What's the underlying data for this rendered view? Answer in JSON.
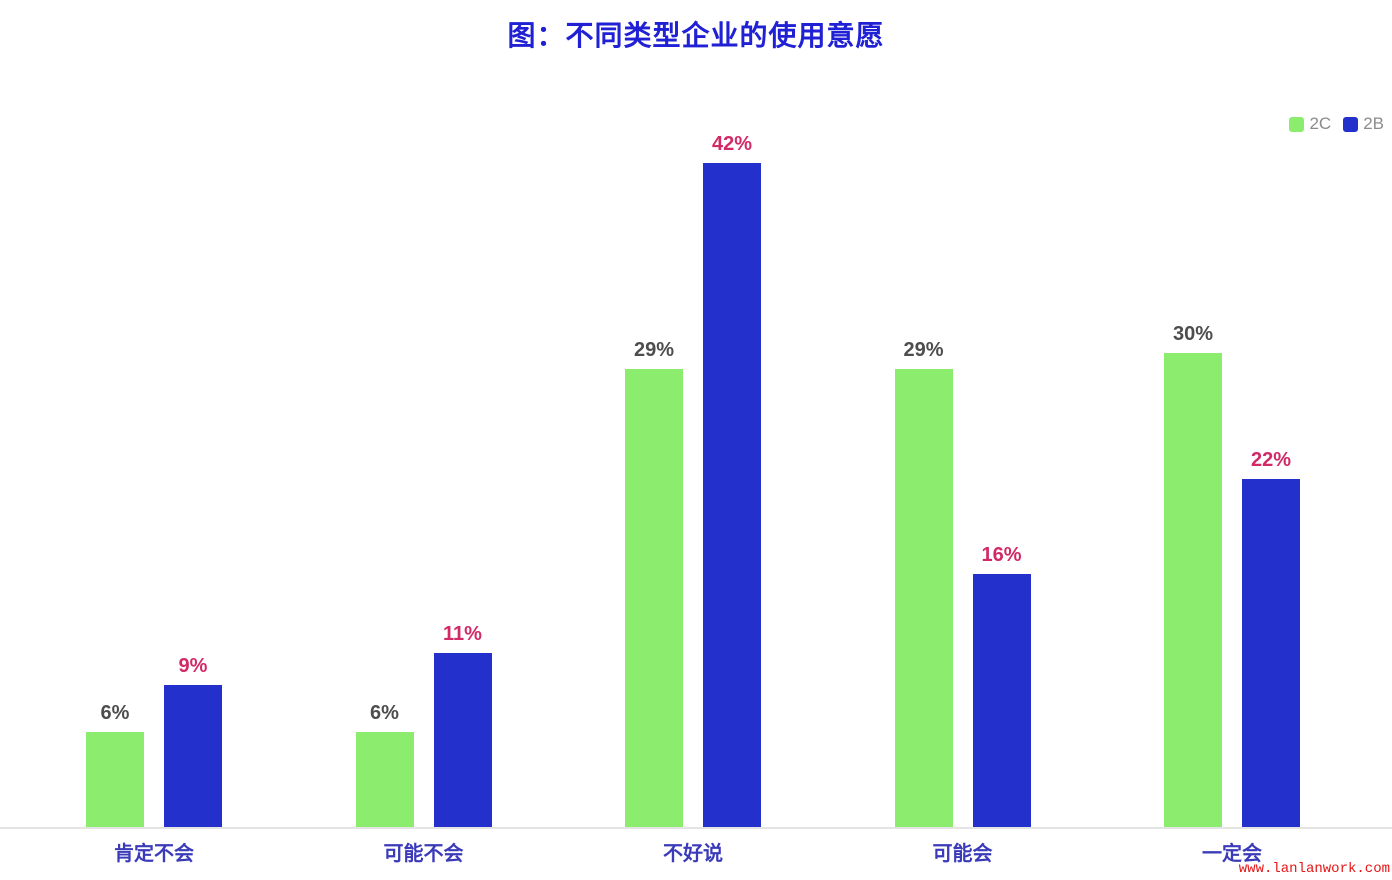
{
  "title": "图：不同类型企业的使用意愿",
  "legend": [
    {
      "label": "2C",
      "color": "#8cec6d"
    },
    {
      "label": "2B",
      "color": "#2330cb"
    }
  ],
  "watermark": "www.lanlanwork.com",
  "colors": {
    "title": "#2020d4",
    "axis_label": "#3b3bba",
    "legend_text": "#8c8c8c",
    "axis_line": "#e4e4e4",
    "watermark": "#e51616"
  },
  "chart_data": {
    "type": "bar",
    "title": "图：不同类型企业的使用意愿",
    "categories": [
      "肯定不会",
      "可能不会",
      "不好说",
      "可能会",
      "一定会"
    ],
    "series": [
      {
        "name": "2C",
        "color": "#8cec6d",
        "label_color": "#4d4d4d",
        "values": [
          6,
          6,
          29,
          29,
          30
        ]
      },
      {
        "name": "2B",
        "color": "#2330cb",
        "label_color": "#d12a66",
        "values": [
          9,
          11,
          42,
          16,
          22
        ]
      }
    ],
    "value_suffix": "%",
    "xlabel": "",
    "ylabel": "",
    "ylim": [
      0,
      44
    ],
    "grid": false,
    "legend_position": "top-right"
  }
}
